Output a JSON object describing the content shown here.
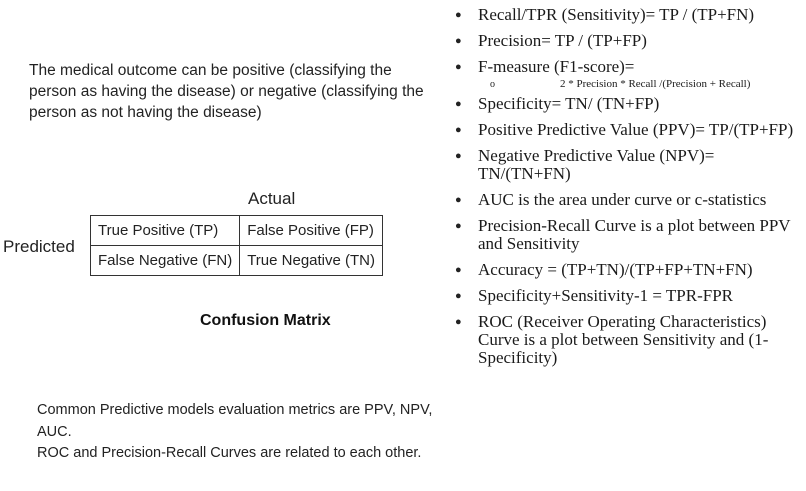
{
  "intro": "The medical outcome can be positive (classifying the person as having the disease) or negative (classifying the person as not having the disease)",
  "matrix": {
    "actual_label": "Actual",
    "predicted_label": "Predicted",
    "cells": {
      "tp": "True Positive (TP)",
      "fp": "False Positive (FP)",
      "fn": "False Negative (FN)",
      "tn": "True Negative (TN)"
    },
    "title": "Confusion Matrix"
  },
  "summary": {
    "line1": "Common Predictive models evaluation metrics are PPV, NPV, AUC.",
    "line2": "ROC and Precision-Recall Curves are related to each other."
  },
  "metrics": {
    "recall": "Recall/TPR (Sensitivity)= TP / (TP+FN)",
    "precision": "Precision= TP / (TP+FP)",
    "fmeasure": "F-measure (F1-score)=",
    "fmeasure_formula": "2 * Precision  * Recall  /(Precision  + Recall)",
    "specificity": "Specificity= TN/ (TN+FP)",
    "ppv": "Positive Predictive Value (PPV)= TP/(TP+FP)",
    "npv": "Negative Predictive Value (NPV)= TN/(TN+FN)",
    "auc": "AUC is the area under curve or c-statistics",
    "pr_curve": "Precision-Recall Curve is a plot between PPV and Sensitivity",
    "accuracy": "Accuracy =  (TP+TN)/(TP+FP+TN+FN)",
    "spec_sens": "Specificity+Sensitivity-1 = TPR-FPR",
    "roc": "ROC (Receiver Operating Characteristics) Curve  is a plot between Sensitivity and (1- Specificity)"
  },
  "icons": {
    "bullet": "bullet-icon",
    "sub_bullet": "ring-bullet-icon"
  }
}
